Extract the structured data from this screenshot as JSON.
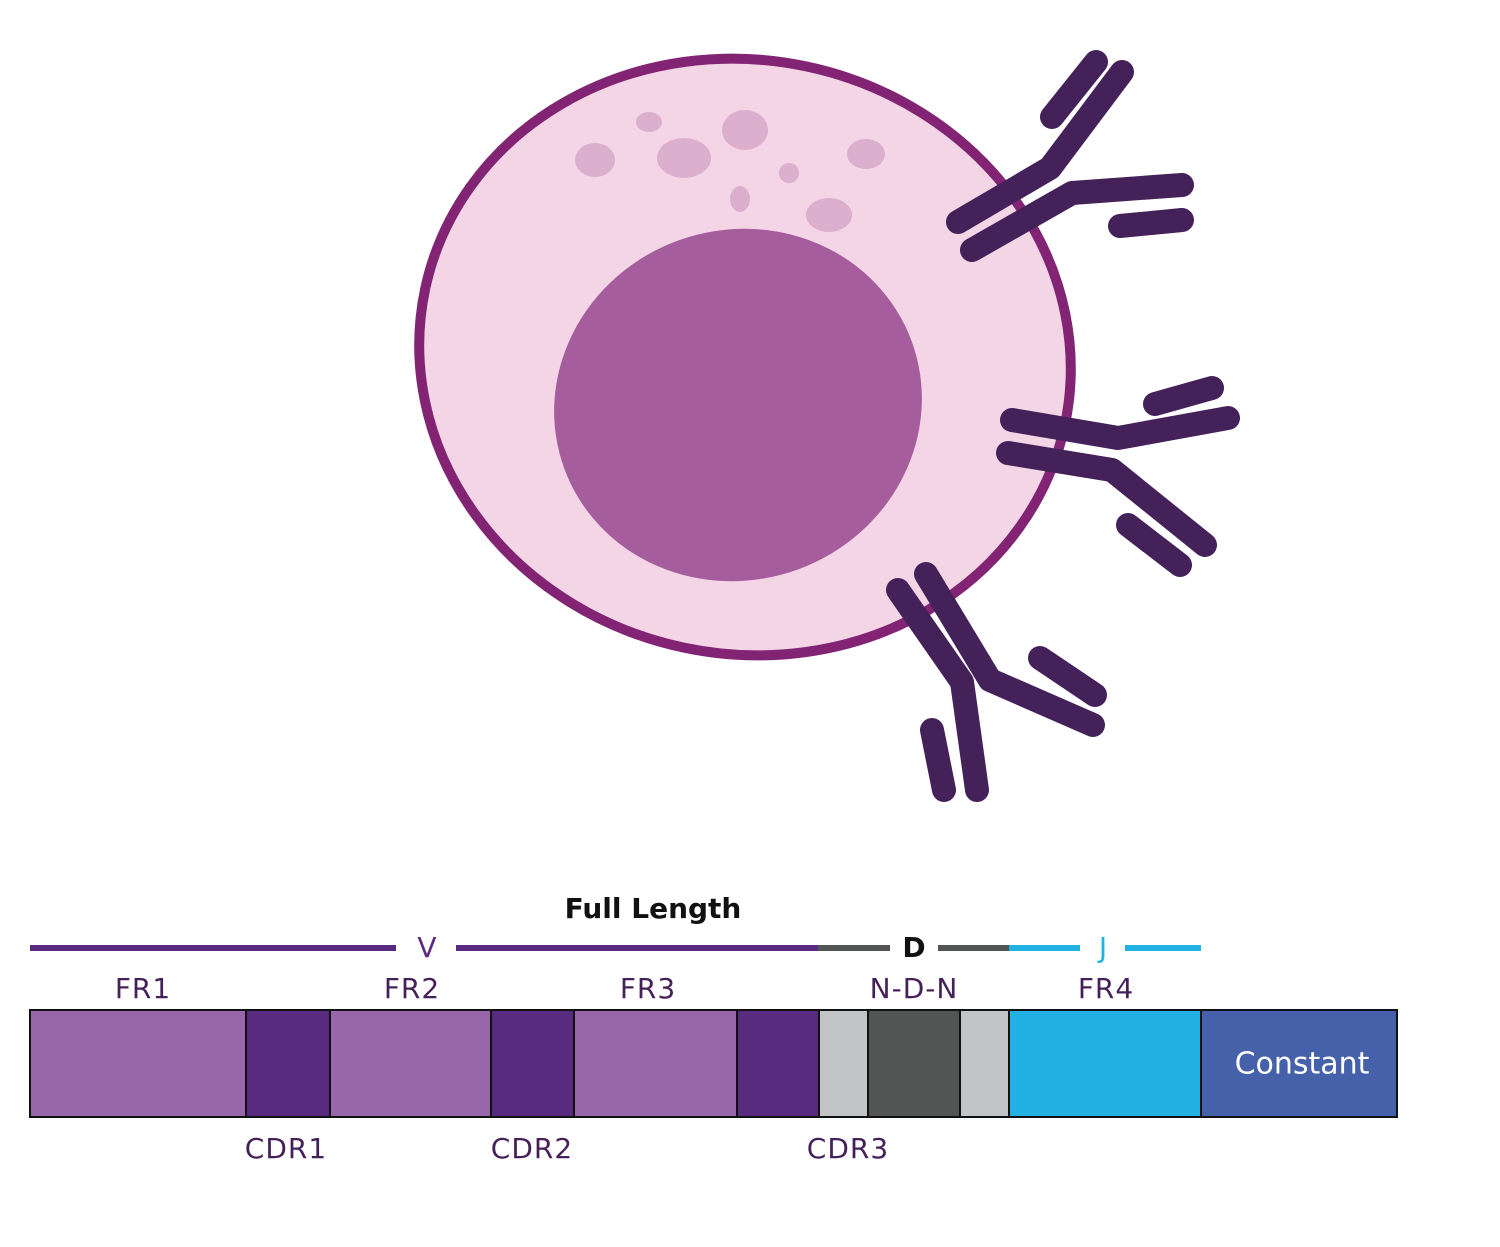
{
  "header": {
    "title": "Full Length"
  },
  "genes": [
    "V",
    "D",
    "J"
  ],
  "top_labels": [
    "FR1",
    "FR2",
    "FR3",
    "N-D-N",
    "FR4"
  ],
  "bottom_labels": [
    "CDR1",
    "CDR2",
    "CDR3"
  ],
  "constant": "Constant"
}
